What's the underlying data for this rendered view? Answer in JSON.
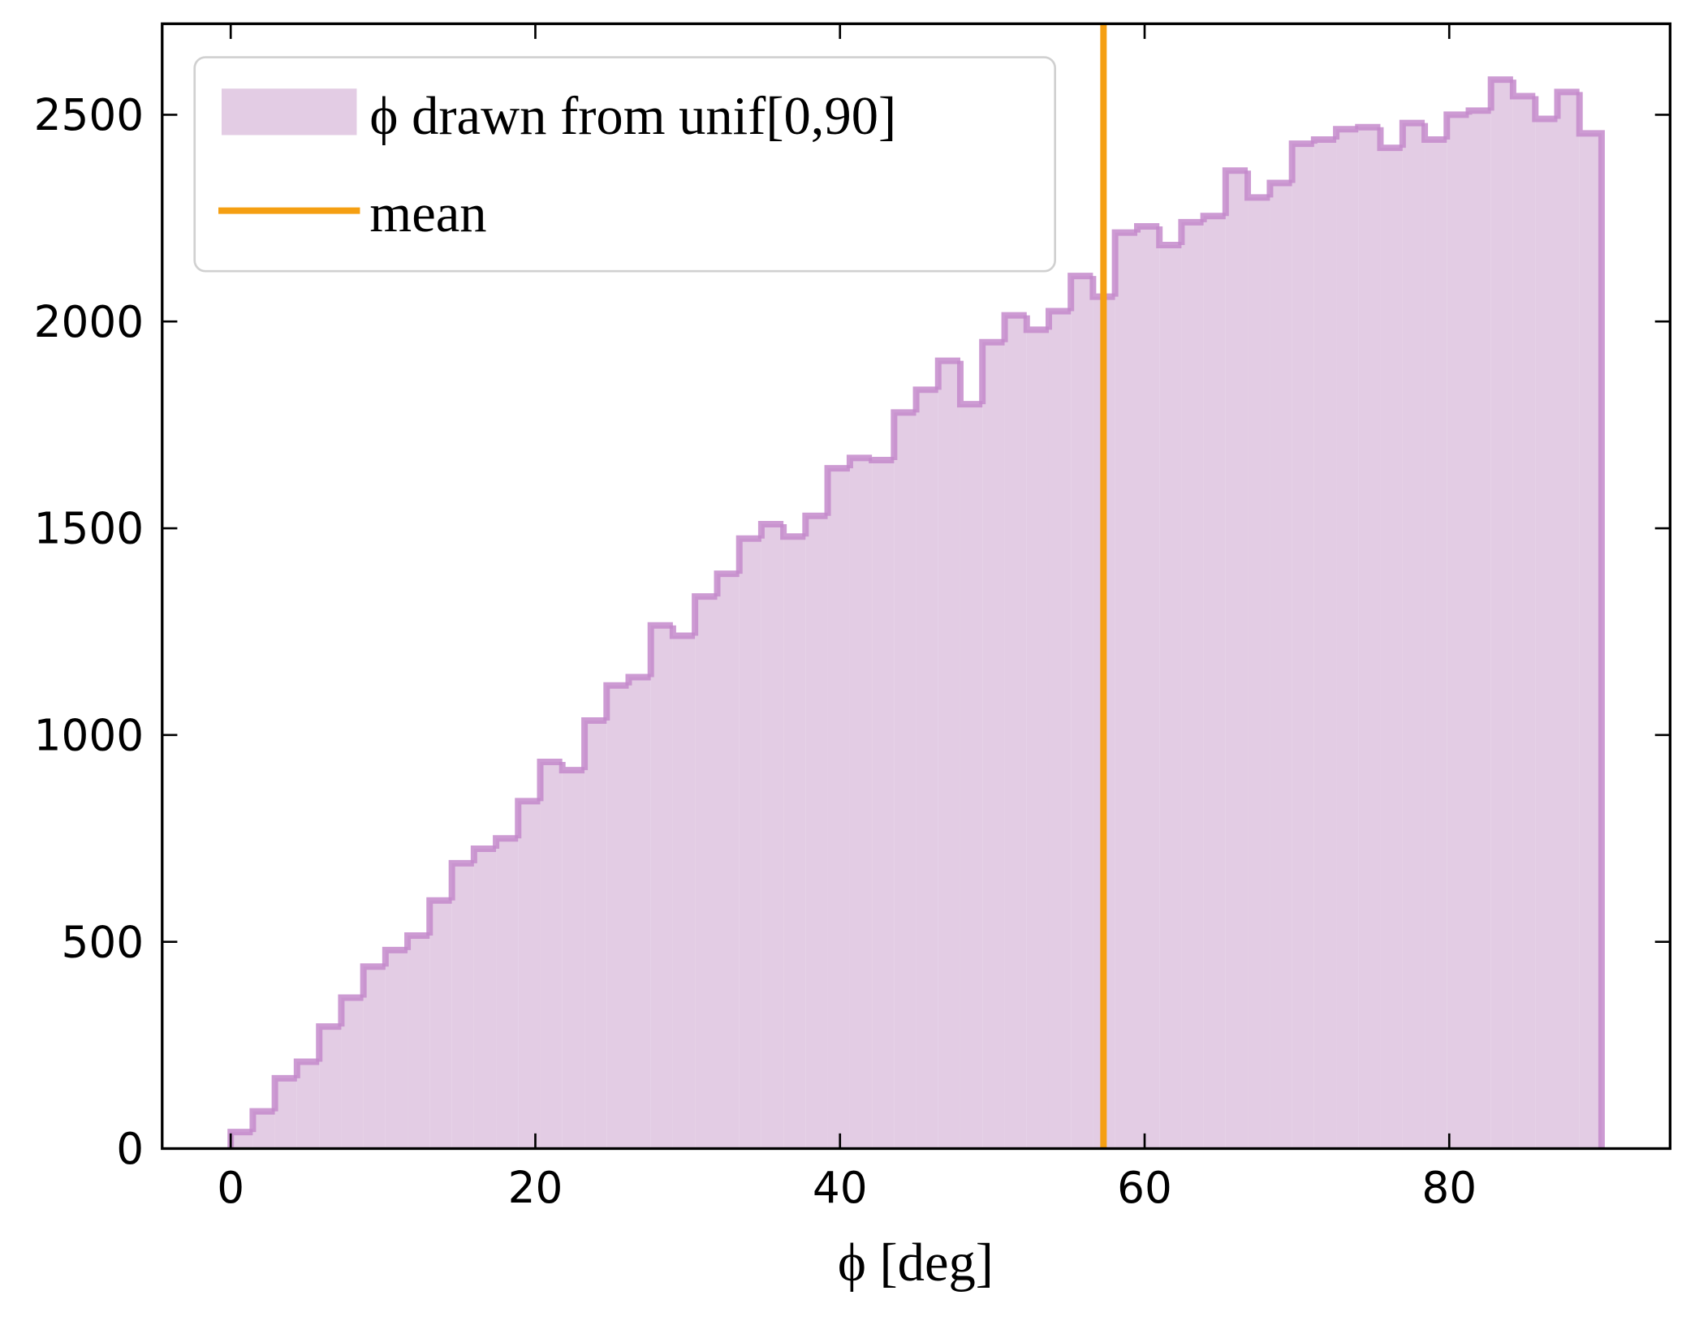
{
  "chart_data": {
    "type": "histogram",
    "xlabel": "ϕ [deg]",
    "bins": [
      0,
      1.45,
      2.9,
      4.35,
      5.81,
      7.26,
      8.71,
      10.16,
      11.61,
      13.06,
      14.52,
      15.97,
      17.42,
      18.87,
      20.32,
      21.77,
      23.23,
      24.68,
      26.13,
      27.58,
      29.03,
      30.48,
      31.94,
      33.39,
      34.84,
      36.29,
      37.74,
      39.19,
      40.65,
      42.1,
      43.55,
      45,
      46.45,
      47.9,
      49.35,
      50.81,
      52.26,
      53.71,
      55.16,
      56.61,
      58.06,
      59.52,
      60.97,
      62.42,
      63.87,
      65.32,
      66.77,
      68.23,
      69.68,
      71.13,
      72.58,
      74.03,
      75.48,
      76.94,
      78.39,
      79.84,
      81.29,
      82.74,
      84.19,
      85.65,
      87.1,
      88.55,
      90
    ],
    "series": [
      {
        "name": "ϕ drawn from unif[0,90]",
        "color": "#e3cce4",
        "edge_color": "#c48acb",
        "values": [
          40,
          90,
          170,
          210,
          295,
          365,
          440,
          480,
          515,
          600,
          690,
          725,
          750,
          840,
          935,
          915,
          1035,
          1120,
          1140,
          1265,
          1240,
          1335,
          1390,
          1475,
          1510,
          1480,
          1530,
          1645,
          1670,
          1665,
          1780,
          1835,
          1905,
          1800,
          1950,
          2015,
          1980,
          2025,
          2110,
          2060,
          2215,
          2230,
          2185,
          2240,
          2255,
          2365,
          2300,
          2335,
          2430,
          2440,
          2465,
          2470,
          2420,
          2480,
          2440,
          2500,
          2510,
          2585,
          2545,
          2490,
          2555,
          2455
        ]
      }
    ],
    "mean": {
      "name": "mean",
      "value": 57.3,
      "color": "#f59f12"
    },
    "xlim": [
      -4.5,
      94.5
    ],
    "ylim": [
      0,
      2720
    ],
    "xticks": [
      0,
      20,
      40,
      60,
      80
    ],
    "yticks": [
      0,
      500,
      1000,
      1500,
      2000,
      2500
    ],
    "legend": "upper left"
  }
}
